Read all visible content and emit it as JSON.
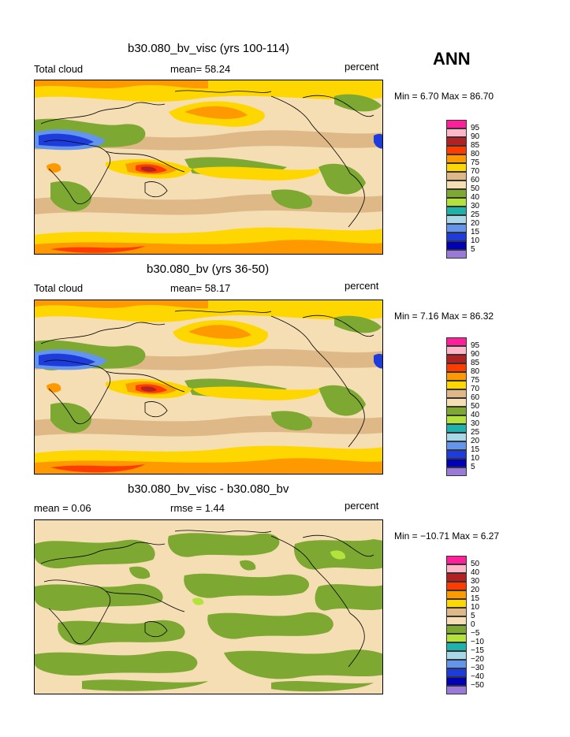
{
  "season": "ANN",
  "panels": [
    {
      "title": "b30.080_bv_visc (yrs 100-114)",
      "left_label": "Total cloud",
      "mean_label": "mean=  58.24",
      "units": "percent",
      "minmax": "Min =   6.70 Max =  86.70",
      "levels": [
        "95",
        "90",
        "85",
        "80",
        "75",
        "70",
        "60",
        "50",
        "40",
        "30",
        "25",
        "20",
        "15",
        "10",
        "5"
      ],
      "colors": [
        "#ff1f9a",
        "#ffb6c8",
        "#b22222",
        "#ff3c00",
        "#ff9900",
        "#ffd700",
        "#deb887",
        "#f5deb3",
        "#7da831",
        "#b4e23c",
        "#20b2aa",
        "#a8d8e8",
        "#6495ed",
        "#1e3cdc",
        "#0000b4",
        "#9a7ad8"
      ]
    },
    {
      "title": "b30.080_bv (yrs 36-50)",
      "left_label": "Total cloud",
      "mean_label": "mean=  58.17",
      "units": "percent",
      "minmax": "Min =   7.16 Max =  86.32",
      "levels": [
        "95",
        "90",
        "85",
        "80",
        "75",
        "70",
        "60",
        "50",
        "40",
        "30",
        "25",
        "20",
        "15",
        "10",
        "5"
      ],
      "colors": [
        "#ff1f9a",
        "#ffb6c8",
        "#b22222",
        "#ff3c00",
        "#ff9900",
        "#ffd700",
        "#deb887",
        "#f5deb3",
        "#7da831",
        "#b4e23c",
        "#20b2aa",
        "#a8d8e8",
        "#6495ed",
        "#1e3cdc",
        "#0000b4",
        "#9a7ad8"
      ]
    },
    {
      "title": "b30.080_bv_visc - b30.080_bv",
      "left_label": "mean =   0.06",
      "mean_label": "rmse =   1.44",
      "units": "percent",
      "minmax": "Min = −10.71 Max =   6.27",
      "levels": [
        "50",
        "40",
        "30",
        "20",
        "15",
        "10",
        "5",
        "0",
        "−5",
        "−10",
        "−15",
        "−20",
        "−30",
        "−40",
        "−50"
      ],
      "colors": [
        "#ff1f9a",
        "#ffb6c8",
        "#b22222",
        "#ff3c00",
        "#ff9900",
        "#ffd700",
        "#deb887",
        "#f5deb3",
        "#7da831",
        "#b4e23c",
        "#20b2aa",
        "#a8d8e8",
        "#6495ed",
        "#1e3cdc",
        "#0000b4",
        "#9a7ad8"
      ]
    }
  ]
}
